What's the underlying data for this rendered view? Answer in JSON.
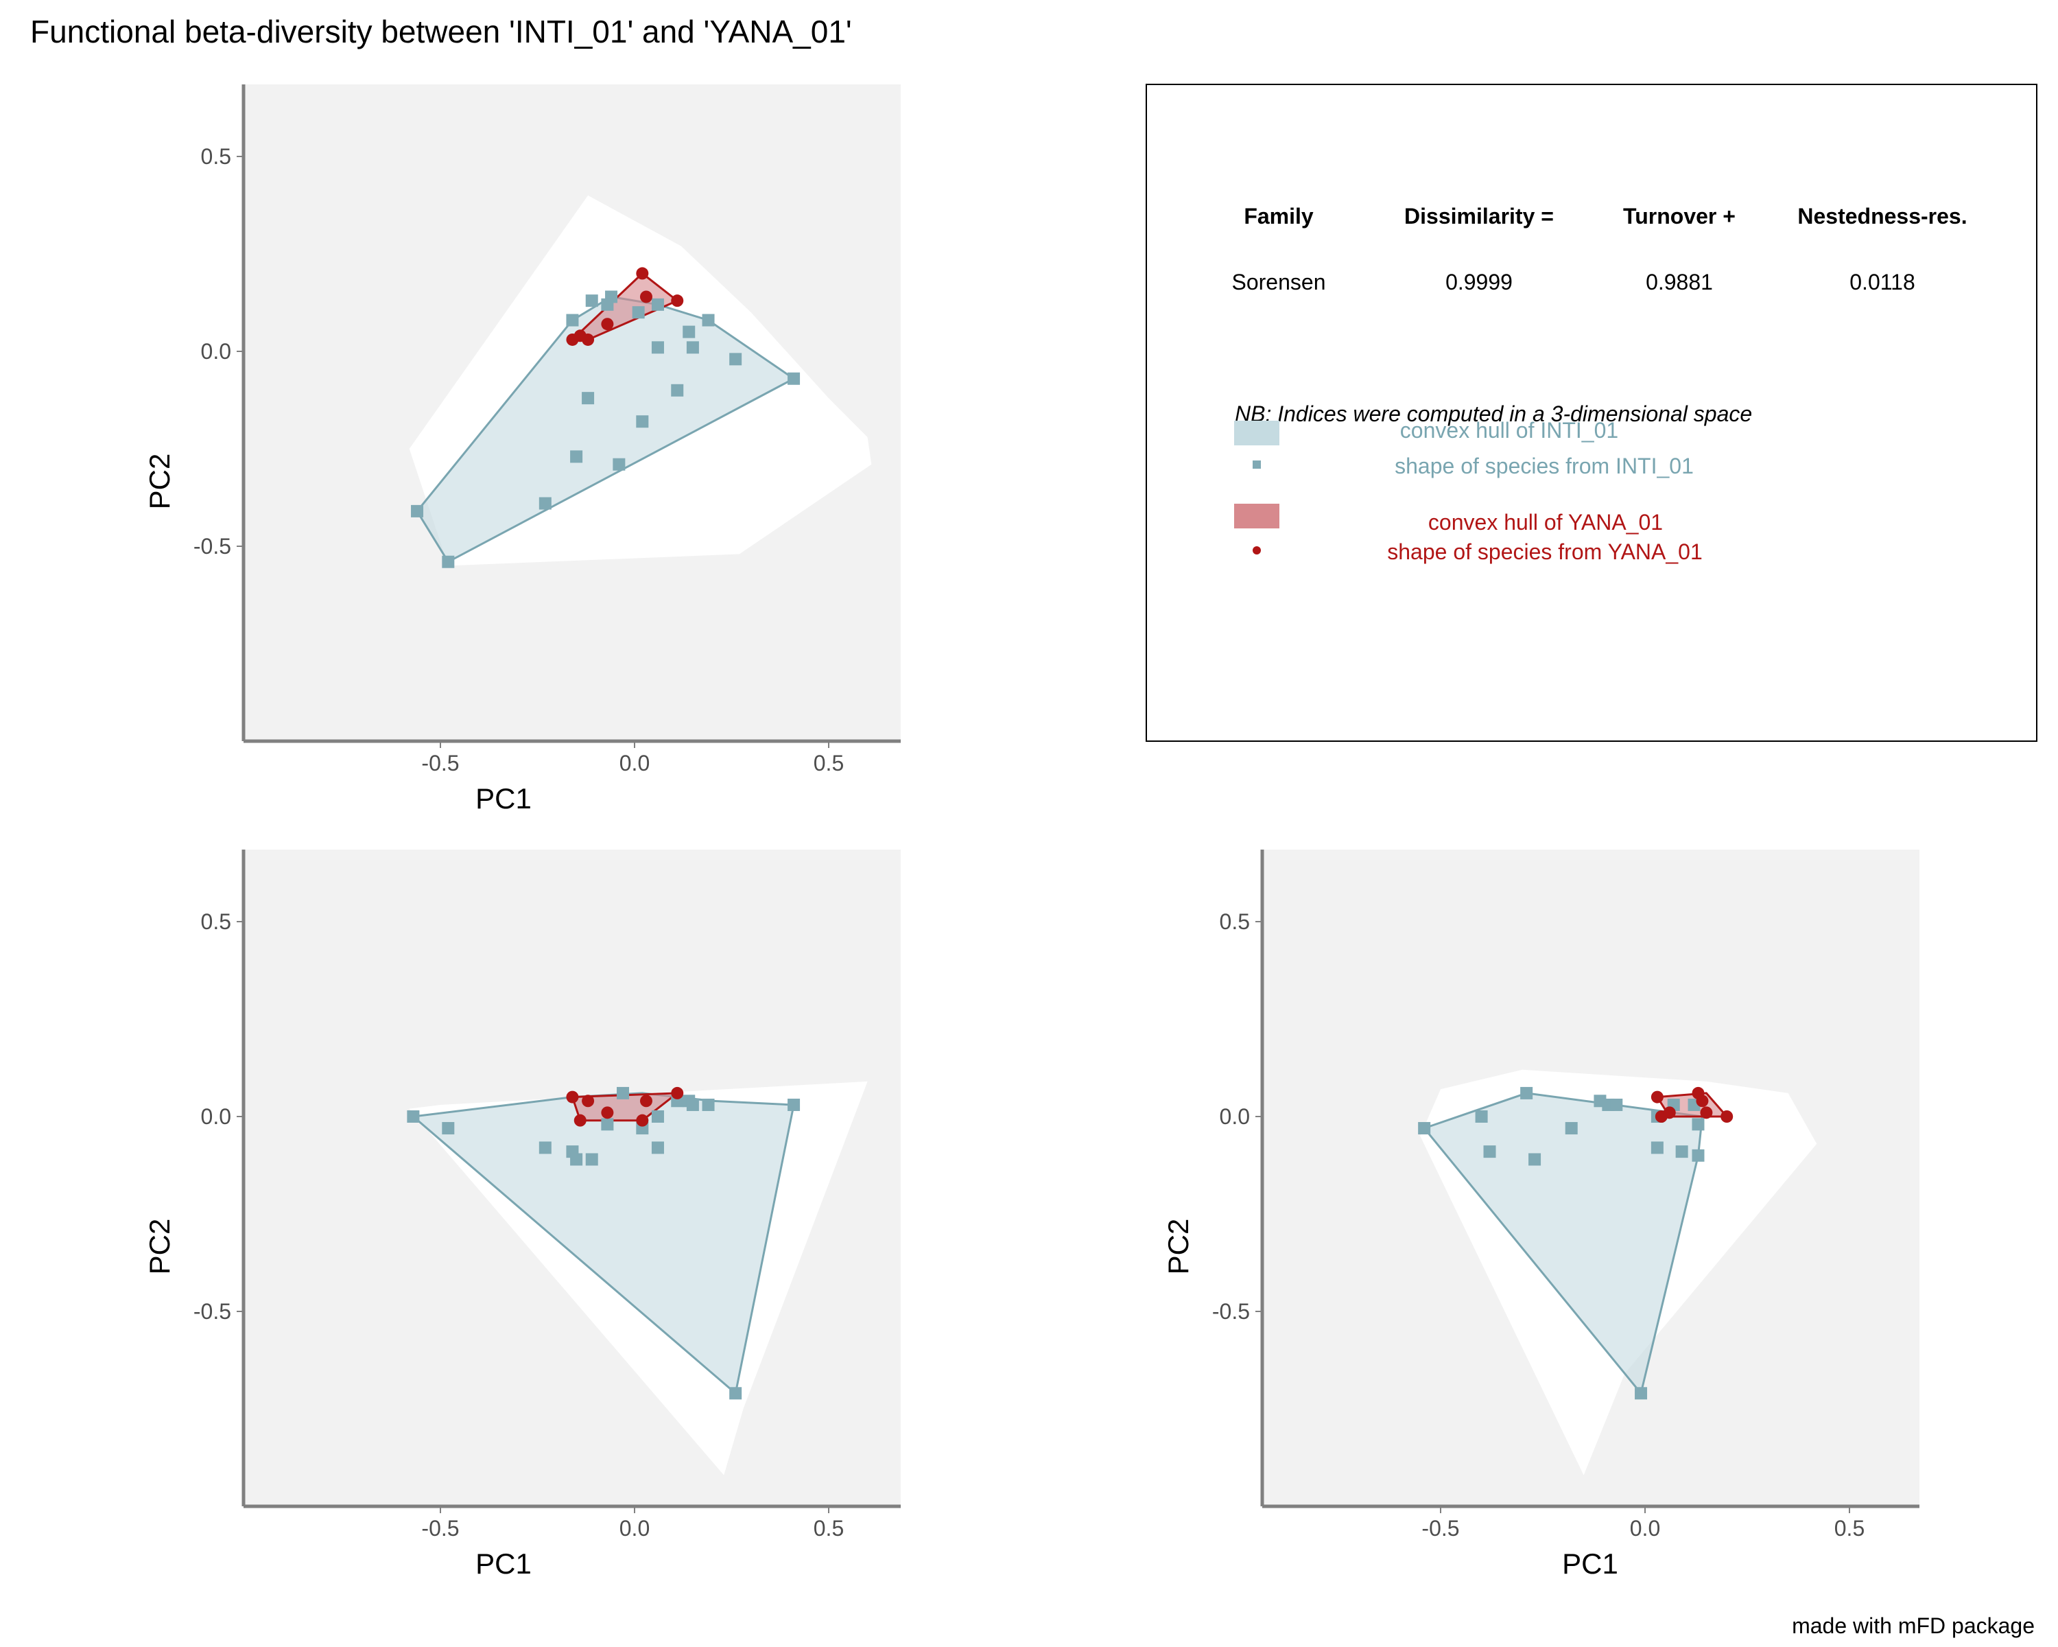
{
  "title": "Functional beta-diversity between 'INTI_01' and 'YANA_01'",
  "caption": "made with mFD package",
  "colors": {
    "panel_bg": "#F2F2F2",
    "global_hull": "#FFFFFF",
    "inti_fill": "#C5DBE1",
    "inti_stroke": "#79A5B0",
    "inti_point": "#7FA9B4",
    "yana_fill": "#D7898D",
    "yana_stroke": "#B11515",
    "yana_point": "#B11515",
    "axis": "#808080",
    "tick_text": "#4D4D4D",
    "text": "#000000"
  },
  "legend_box": {
    "headers": [
      "Family",
      "Dissimilarity =",
      "Turnover +",
      "Nestedness-res."
    ],
    "row": [
      "Sorensen",
      "0.9999",
      "0.9881",
      "0.0118"
    ],
    "note": "NB: Indices were computed in a 3-dimensional space",
    "items": [
      {
        "label": "convex hull of INTI_01",
        "kind": "fill",
        "color": "#C5DBE1",
        "text_color": "#79A5B0"
      },
      {
        "label": "shape of species from INTI_01",
        "kind": "square",
        "color": "#7FA9B4",
        "text_color": "#79A5B0"
      },
      {
        "label": "convex hull of YANA_01",
        "kind": "fill",
        "color": "#D7898D",
        "text_color": "#B11515"
      },
      {
        "label": "shape of species from YANA_01",
        "kind": "circle",
        "color": "#B11515",
        "text_color": "#B11515"
      }
    ]
  },
  "chart_data": [
    {
      "type": "scatter",
      "xlabel": "PC1",
      "ylabel": "PC2",
      "xlim": [
        -1.0,
        0.68
      ],
      "ylim": [
        -1.0,
        0.68
      ],
      "xticks": [
        -0.5,
        0.0,
        0.5
      ],
      "xtick_labels": [
        "-0.5",
        "0.0",
        "0.5"
      ],
      "yticks": [
        -0.5,
        0.0,
        0.5
      ],
      "ytick_labels": [
        "-0.5",
        "0.0",
        "0.5"
      ],
      "global_hull": [
        [
          -0.12,
          0.4
        ],
        [
          0.12,
          0.27
        ],
        [
          0.3,
          0.1
        ],
        [
          0.5,
          -0.12
        ],
        [
          0.6,
          -0.22
        ],
        [
          0.61,
          -0.29
        ],
        [
          0.27,
          -0.52
        ],
        [
          -0.48,
          -0.55
        ],
        [
          -0.58,
          -0.25
        ]
      ],
      "inti_hull": [
        [
          -0.56,
          -0.41
        ],
        [
          -0.16,
          0.08
        ],
        [
          -0.06,
          0.14
        ],
        [
          0.06,
          0.12
        ],
        [
          0.19,
          0.08
        ],
        [
          0.41,
          -0.07
        ],
        [
          -0.48,
          -0.54
        ]
      ],
      "inti_points": [
        [
          -0.56,
          -0.41
        ],
        [
          -0.48,
          -0.54
        ],
        [
          -0.23,
          -0.39
        ],
        [
          -0.15,
          -0.27
        ],
        [
          -0.12,
          -0.12
        ],
        [
          -0.04,
          -0.29
        ],
        [
          0.02,
          -0.18
        ],
        [
          0.11,
          -0.1
        ],
        [
          -0.16,
          0.08
        ],
        [
          -0.11,
          0.13
        ],
        [
          -0.06,
          0.14
        ],
        [
          -0.07,
          0.12
        ],
        [
          0.01,
          0.1
        ],
        [
          0.06,
          0.12
        ],
        [
          0.06,
          0.01
        ],
        [
          0.14,
          0.05
        ],
        [
          0.15,
          0.01
        ],
        [
          0.19,
          0.08
        ],
        [
          0.26,
          -0.02
        ],
        [
          0.41,
          -0.07
        ]
      ],
      "yana_hull": [
        [
          -0.16,
          0.03
        ],
        [
          0.02,
          0.2
        ],
        [
          0.11,
          0.13
        ],
        [
          -0.12,
          0.03
        ]
      ],
      "yana_points": [
        [
          -0.16,
          0.03
        ],
        [
          -0.14,
          0.04
        ],
        [
          -0.12,
          0.03
        ],
        [
          -0.07,
          0.07
        ],
        [
          0.02,
          0.2
        ],
        [
          0.03,
          0.14
        ],
        [
          0.11,
          0.13
        ]
      ]
    },
    {
      "type": "scatter",
      "xlabel": "PC1",
      "ylabel": "PC2",
      "xlim": [
        -1.0,
        0.68
      ],
      "ylim": [
        -1.0,
        0.68
      ],
      "xticks": [
        -0.5,
        0.0,
        0.5
      ],
      "xtick_labels": [
        "-0.5",
        "0.0",
        "0.5"
      ],
      "yticks": [
        -0.5,
        0.0,
        0.5
      ],
      "ytick_labels": [
        "-0.5",
        "0.0",
        "0.5"
      ],
      "global_hull": [
        [
          -0.58,
          0.02
        ],
        [
          -0.5,
          0.03
        ],
        [
          0.6,
          0.09
        ],
        [
          0.28,
          -0.75
        ],
        [
          0.23,
          -0.92
        ]
      ],
      "inti_hull": [
        [
          -0.57,
          0.0
        ],
        [
          -0.16,
          0.05
        ],
        [
          0.02,
          0.06
        ],
        [
          0.2,
          0.04
        ],
        [
          0.41,
          0.03
        ],
        [
          0.26,
          -0.71
        ]
      ],
      "inti_points": [
        [
          -0.57,
          0.0
        ],
        [
          -0.48,
          -0.03
        ],
        [
          -0.23,
          -0.08
        ],
        [
          -0.16,
          -0.09
        ],
        [
          -0.15,
          -0.11
        ],
        [
          -0.11,
          -0.11
        ],
        [
          -0.07,
          -0.02
        ],
        [
          -0.03,
          0.06
        ],
        [
          0.02,
          -0.03
        ],
        [
          0.06,
          -0.08
        ],
        [
          0.06,
          0.0
        ],
        [
          0.11,
          0.04
        ],
        [
          0.14,
          0.04
        ],
        [
          0.15,
          0.03
        ],
        [
          0.19,
          0.03
        ],
        [
          0.26,
          -0.71
        ],
        [
          0.41,
          0.03
        ]
      ],
      "yana_hull": [
        [
          -0.16,
          0.05
        ],
        [
          0.11,
          0.06
        ],
        [
          0.02,
          -0.01
        ],
        [
          -0.14,
          -0.01
        ]
      ],
      "yana_points": [
        [
          -0.16,
          0.05
        ],
        [
          -0.14,
          -0.01
        ],
        [
          -0.12,
          0.04
        ],
        [
          -0.07,
          0.01
        ],
        [
          0.02,
          -0.01
        ],
        [
          0.03,
          0.04
        ],
        [
          0.11,
          0.06
        ]
      ]
    },
    {
      "type": "scatter",
      "xlabel": "",
      "ylabel": "PC2",
      "xlim": [
        -1.0,
        0.68
      ],
      "ylim": [
        -1.0,
        0.68
      ],
      "xticks": [
        -0.5,
        0.0,
        0.5
      ],
      "xtick_labels": [
        "-0.5",
        "0.0",
        "0.5"
      ],
      "yticks": [
        -0.5,
        0.0,
        0.5
      ],
      "ytick_labels": [
        "-0.5",
        "0.0",
        "0.5"
      ],
      "global_hull": [
        [
          -0.5,
          0.07
        ],
        [
          -0.3,
          0.12
        ],
        [
          0.15,
          0.09
        ],
        [
          0.35,
          0.06
        ],
        [
          0.42,
          -0.07
        ],
        [
          -0.05,
          -0.66
        ],
        [
          -0.15,
          -0.92
        ],
        [
          -0.55,
          -0.05
        ]
      ],
      "inti_hull": [
        [
          -0.54,
          -0.03
        ],
        [
          -0.29,
          0.06
        ],
        [
          0.14,
          0.0
        ],
        [
          0.13,
          -0.1
        ],
        [
          -0.01,
          -0.71
        ]
      ],
      "inti_points": [
        [
          -0.54,
          -0.03
        ],
        [
          -0.4,
          0.0
        ],
        [
          -0.38,
          -0.09
        ],
        [
          -0.29,
          0.06
        ],
        [
          -0.27,
          -0.11
        ],
        [
          -0.18,
          -0.03
        ],
        [
          -0.11,
          0.04
        ],
        [
          -0.09,
          0.03
        ],
        [
          -0.07,
          0.03
        ],
        [
          0.03,
          0.0
        ],
        [
          0.03,
          -0.08
        ],
        [
          0.07,
          0.03
        ],
        [
          0.09,
          -0.09
        ],
        [
          0.12,
          0.03
        ],
        [
          0.13,
          -0.02
        ],
        [
          0.13,
          -0.1
        ],
        [
          -0.01,
          -0.71
        ]
      ],
      "yana_hull": [
        [
          0.03,
          0.05
        ],
        [
          0.15,
          0.06
        ],
        [
          0.2,
          0.0
        ],
        [
          0.06,
          0.0
        ]
      ],
      "yana_points": [
        [
          0.03,
          0.05
        ],
        [
          0.04,
          0.0
        ],
        [
          0.06,
          0.01
        ],
        [
          0.13,
          0.06
        ],
        [
          0.14,
          0.04
        ],
        [
          0.15,
          0.01
        ],
        [
          0.2,
          0.0
        ]
      ]
    }
  ]
}
